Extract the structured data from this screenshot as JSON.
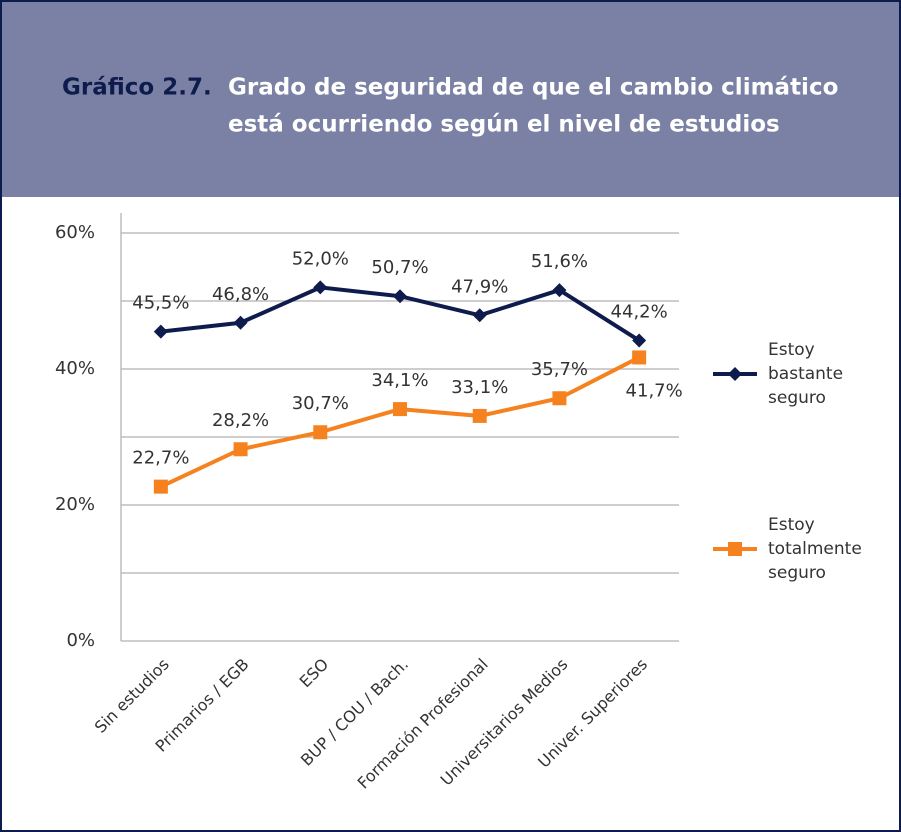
{
  "chart_data": {
    "type": "line",
    "title_label": "Gráfico 2.7.",
    "title": [
      "Grado de seguridad de que el cambio climático",
      "está ocurriendo según el nivel de estudios"
    ],
    "categories": [
      "Sin estudios",
      "Primarios / EGB",
      "ESO",
      "BUP / COU / Bach.",
      "Formación Profesional",
      "Universitarios Medios",
      "Univer. Superiores"
    ],
    "series": [
      {
        "name": "Estoy bastante seguro",
        "color": "#0e1c4d",
        "marker": "diamond",
        "values": [
          45.5,
          46.8,
          52.0,
          50.7,
          47.9,
          51.6,
          44.2
        ],
        "value_labels": [
          "45,5%",
          "46,8%",
          "52,0%",
          "50,7%",
          "47,9%",
          "51,6%",
          "44,2%"
        ]
      },
      {
        "name": "Estoy totalmente seguro",
        "color": "#f5821f",
        "marker": "square",
        "values": [
          22.7,
          28.2,
          30.7,
          34.1,
          33.1,
          35.7,
          41.7
        ],
        "value_labels": [
          "22,7%",
          "28,2%",
          "30,7%",
          "34,1%",
          "33,1%",
          "35,7%",
          "41,7%"
        ]
      }
    ],
    "ylim": [
      0,
      60
    ],
    "yticks": [
      {
        "value": 0,
        "label": "0%"
      },
      {
        "value": 20,
        "label": "20%"
      },
      {
        "value": 40,
        "label": "40%"
      },
      {
        "value": 60,
        "label": "60%"
      }
    ],
    "minor_yticks": [
      10,
      30,
      50
    ],
    "grid": true,
    "legend": "right"
  }
}
